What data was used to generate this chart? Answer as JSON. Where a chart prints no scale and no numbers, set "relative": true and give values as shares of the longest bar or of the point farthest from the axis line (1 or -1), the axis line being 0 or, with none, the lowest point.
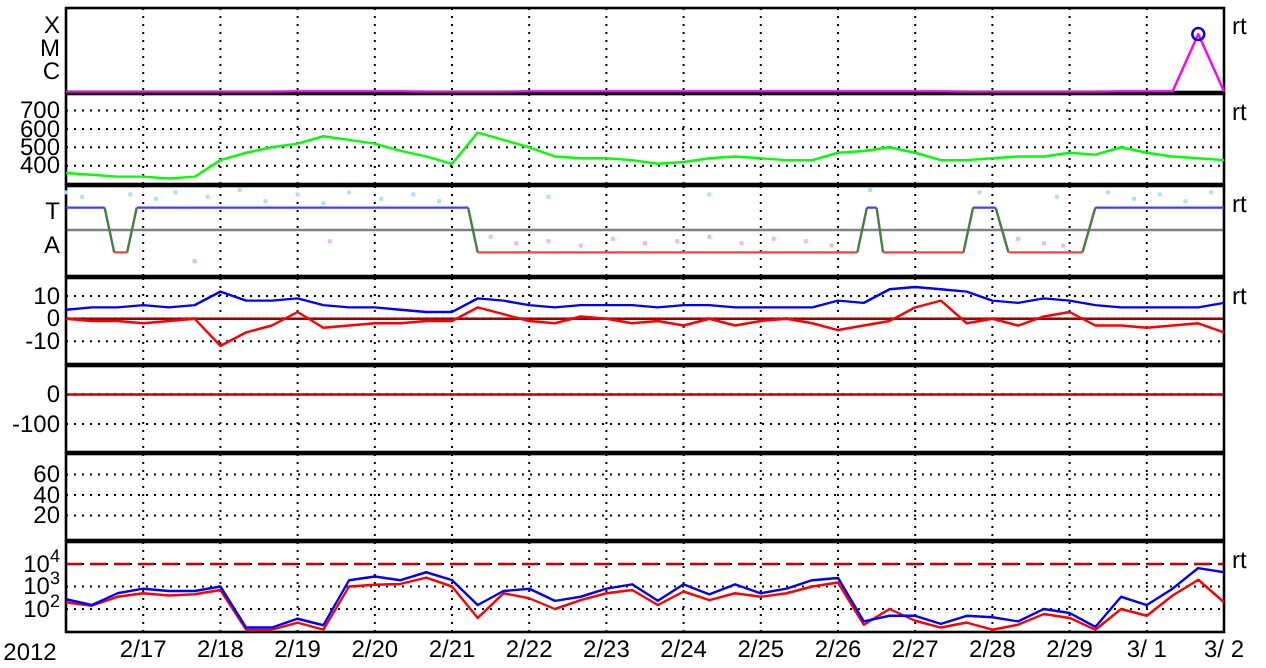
{
  "chart_data": [
    {
      "type": "line",
      "relative": true,
      "grid": "x",
      "tick_labels": "y",
      "annotations": [
        "rt",
        "X",
        "M",
        "C"
      ],
      "xlim": [
        "2012-02-16T00:00",
        "2012-03-02T00:00"
      ],
      "xticks": [
        {
          "value": "2012-02-17T00:00",
          "label": null
        },
        {
          "value": "2012-02-18T00:00",
          "label": null
        },
        {
          "value": "2012-02-19T00:00",
          "label": null
        },
        {
          "value": "2012-02-20T00:00",
          "label": null
        },
        {
          "value": "2012-02-21T00:00",
          "label": null
        },
        {
          "value": "2012-02-22T00:00",
          "label": null
        },
        {
          "value": "2012-02-23T00:00",
          "label": null
        },
        {
          "value": "2012-02-24T00:00",
          "label": null
        },
        {
          "value": "2012-02-25T00:00",
          "label": null
        },
        {
          "value": "2012-02-26T00:00",
          "label": null
        },
        {
          "value": "2012-02-27T00:00",
          "label": null
        },
        {
          "value": "2012-02-28T00:00",
          "label": null
        },
        {
          "value": "2012-02-29T00:00",
          "label": null
        },
        {
          "value": "2012-03-01T00:00",
          "label": null
        },
        {
          "value": "2012-03-02T00:00",
          "label": null
        }
      ],
      "x": [
        "2012-02-16T00:00",
        "2012-02-16T08:00",
        "2012-02-16T16:00",
        "2012-02-17T00:00",
        "2012-02-17T08:00",
        "2012-02-17T16:00",
        "2012-02-18T00:00",
        "2012-02-18T08:00",
        "2012-02-18T16:00",
        "2012-02-19T00:00",
        "2012-02-19T08:00",
        "2012-02-19T16:00",
        "2012-02-20T00:00",
        "2012-02-20T08:00",
        "2012-02-20T16:00",
        "2012-02-21T00:00",
        "2012-02-21T08:00",
        "2012-02-21T16:00",
        "2012-02-22T00:00",
        "2012-02-22T08:00",
        "2012-02-22T16:00",
        "2012-02-23T00:00",
        "2012-02-23T08:00",
        "2012-02-23T16:00",
        "2012-02-24T00:00",
        "2012-02-24T08:00",
        "2012-02-24T16:00",
        "2012-02-25T00:00",
        "2012-02-25T08:00",
        "2012-02-25T16:00",
        "2012-02-26T00:00",
        "2012-02-26T08:00",
        "2012-02-26T16:00",
        "2012-02-27T00:00",
        "2012-02-27T08:00",
        "2012-02-27T16:00",
        "2012-02-28T00:00",
        "2012-02-28T08:00",
        "2012-02-28T16:00",
        "2012-02-29T00:00",
        "2012-02-29T08:00",
        "2012-02-29T16:00",
        "2012-03-01T00:00",
        "2012-03-01T08:00",
        "2012-03-01T16:00",
        "2012-03-02T00:00"
      ],
      "series": [
        {
          "color": "#ff00ff",
          "values": [
            0,
            0,
            0,
            0,
            0,
            0,
            0,
            0,
            0,
            0.01,
            0.01,
            0.01,
            0.01,
            0.01,
            0,
            0,
            0,
            0,
            0.01,
            0.01,
            0.01,
            0.01,
            0.01,
            0.01,
            0.01,
            0.01,
            0.01,
            0.01,
            0.01,
            0.01,
            0.01,
            0.01,
            0.01,
            0.01,
            0.01,
            0,
            0,
            0,
            0,
            0,
            0,
            0.01,
            0.01,
            0.01,
            1,
            0.01
          ]
        },
        {
          "type": "scatter",
          "marker": "circle",
          "color": "#0000ff",
          "x": [
            "2012-03-01T16:00"
          ],
          "values": [
            1
          ]
        }
      ]
    },
    {
      "type": "line",
      "grid": true,
      "tick_labels": "y",
      "annotations": [
        "rt"
      ],
      "xlim": [
        "2012-02-16T00:00",
        "2012-03-02T00:00"
      ],
      "xticks": [
        {
          "value": "2012-02-17T00:00",
          "label": null
        },
        {
          "value": "2012-02-18T00:00",
          "label": null
        },
        {
          "value": "2012-02-19T00:00",
          "label": null
        },
        {
          "value": "2012-02-20T00:00",
          "label": null
        },
        {
          "value": "2012-02-21T00:00",
          "label": null
        },
        {
          "value": "2012-02-22T00:00",
          "label": null
        },
        {
          "value": "2012-02-23T00:00",
          "label": null
        },
        {
          "value": "2012-02-24T00:00",
          "label": null
        },
        {
          "value": "2012-02-25T00:00",
          "label": null
        },
        {
          "value": "2012-02-26T00:00",
          "label": null
        },
        {
          "value": "2012-02-27T00:00",
          "label": null
        },
        {
          "value": "2012-02-28T00:00",
          "label": null
        },
        {
          "value": "2012-02-29T00:00",
          "label": null
        },
        {
          "value": "2012-03-01T00:00",
          "label": null
        },
        {
          "value": "2012-03-02T00:00",
          "label": null
        }
      ],
      "ylim": [
        300,
        790
      ],
      "yticks": [
        400,
        500,
        600,
        700
      ],
      "x": [
        "2012-02-16T00:00",
        "2012-02-16T08:00",
        "2012-02-16T16:00",
        "2012-02-17T00:00",
        "2012-02-17T08:00",
        "2012-02-17T16:00",
        "2012-02-18T00:00",
        "2012-02-18T08:00",
        "2012-02-18T16:00",
        "2012-02-19T00:00",
        "2012-02-19T08:00",
        "2012-02-19T16:00",
        "2012-02-20T00:00",
        "2012-02-20T08:00",
        "2012-02-20T16:00",
        "2012-02-21T00:00",
        "2012-02-21T08:00",
        "2012-02-21T16:00",
        "2012-02-22T00:00",
        "2012-02-22T08:00",
        "2012-02-22T16:00",
        "2012-02-23T00:00",
        "2012-02-23T08:00",
        "2012-02-23T16:00",
        "2012-02-24T00:00",
        "2012-02-24T08:00",
        "2012-02-24T16:00",
        "2012-02-25T00:00",
        "2012-02-25T08:00",
        "2012-02-25T16:00",
        "2012-02-26T00:00",
        "2012-02-26T08:00",
        "2012-02-26T16:00",
        "2012-02-27T00:00",
        "2012-02-27T08:00",
        "2012-02-27T16:00",
        "2012-02-28T00:00",
        "2012-02-28T08:00",
        "2012-02-28T16:00",
        "2012-02-29T00:00",
        "2012-02-29T08:00",
        "2012-02-29T16:00",
        "2012-03-01T00:00",
        "2012-03-01T08:00",
        "2012-03-01T16:00",
        "2012-03-02T00:00"
      ],
      "series": [
        {
          "color": "#00ff00",
          "values": [
            360,
            350,
            340,
            340,
            330,
            340,
            430,
            470,
            500,
            520,
            560,
            540,
            520,
            480,
            450,
            410,
            580,
            540,
            500,
            450,
            440,
            440,
            430,
            410,
            420,
            440,
            450,
            440,
            430,
            430,
            470,
            480,
            500,
            470,
            430,
            430,
            440,
            450,
            450,
            470,
            460,
            500,
            470,
            450,
            440,
            430
          ]
        }
      ]
    },
    {
      "type": "line",
      "relative": true,
      "grid": "x",
      "tick_labels": "y",
      "annotations": [
        "rt",
        "T",
        "A"
      ],
      "xlim": [
        "2012-02-16T00:00",
        "2012-03-02T00:00"
      ],
      "xticks": [
        {
          "value": "2012-02-17T00:00",
          "label": null
        },
        {
          "value": "2012-02-18T00:00",
          "label": null
        },
        {
          "value": "2012-02-19T00:00",
          "label": null
        },
        {
          "value": "2012-02-20T00:00",
          "label": null
        },
        {
          "value": "2012-02-21T00:00",
          "label": null
        },
        {
          "value": "2012-02-22T00:00",
          "label": null
        },
        {
          "value": "2012-02-23T00:00",
          "label": null
        },
        {
          "value": "2012-02-24T00:00",
          "label": null
        },
        {
          "value": "2012-02-25T00:00",
          "label": null
        },
        {
          "value": "2012-02-26T00:00",
          "label": null
        },
        {
          "value": "2012-02-27T00:00",
          "label": null
        },
        {
          "value": "2012-02-28T00:00",
          "label": null
        },
        {
          "value": "2012-02-29T00:00",
          "label": null
        },
        {
          "value": "2012-03-01T00:00",
          "label": null
        },
        {
          "value": "2012-03-02T00:00",
          "label": null
        }
      ],
      "x": [
        "2012-02-16T00:00",
        "2012-02-16T12:00",
        "2012-02-16T15:00",
        "2012-02-16T19:00",
        "2012-02-16T22:00",
        "2012-02-21T05:00",
        "2012-02-21T08:00",
        "2012-02-26T06:00",
        "2012-02-26T09:00",
        "2012-02-26T12:00",
        "2012-02-26T14:00",
        "2012-02-27T15:00",
        "2012-02-27T18:00",
        "2012-02-28T01:00",
        "2012-02-28T05:00",
        "2012-02-29T04:00",
        "2012-02-29T08:00",
        "2012-03-02T00:00"
      ],
      "series": [
        {
          "type": "scatter",
          "marker": "square",
          "color": "#a8e4f4",
          "x": [
            "2012-02-16T00:00",
            "2012-02-16T05:00",
            "2012-02-16T20:00",
            "2012-02-17T04:00",
            "2012-02-17T10:00",
            "2012-02-17T20:00",
            "2012-02-18T06:00",
            "2012-02-18T14:00",
            "2012-02-19T00:00",
            "2012-02-19T08:00",
            "2012-02-19T16:00",
            "2012-02-20T02:00",
            "2012-02-20T12:00",
            "2012-02-20T20:00",
            "2012-02-22T06:00",
            "2012-02-24T08:00",
            "2012-02-26T10:00",
            "2012-02-27T20:00",
            "2012-02-28T20:00",
            "2012-02-29T12:00",
            "2012-02-29T20:00",
            "2012-03-01T04:00",
            "2012-03-01T12:00",
            "2012-03-01T20:00"
          ],
          "values": [
            0.94,
            0.83,
            0.89,
            0.78,
            0.94,
            0.83,
            1,
            0.72,
            0.89,
            0.67,
            0.94,
            0.78,
            0.89,
            0.72,
            0.83,
            0.89,
            1,
            0.94,
            0.83,
            0.94,
            0.78,
            0.89,
            0.72,
            0.94
          ]
        },
        {
          "type": "scatter",
          "marker": "square",
          "color": "#f4b4f0",
          "x": [
            "2012-02-17T16:00",
            "2012-02-19T10:00",
            "2012-02-21T12:00",
            "2012-02-21T20:00",
            "2012-02-22T06:00",
            "2012-02-22T16:00",
            "2012-02-23T02:00",
            "2012-02-23T12:00",
            "2012-02-23T22:00",
            "2012-02-24T08:00",
            "2012-02-24T18:00",
            "2012-02-25T04:00",
            "2012-02-25T14:00",
            "2012-02-25T22:00",
            "2012-02-28T08:00",
            "2012-02-28T16:00",
            "2012-02-28T22:00"
          ],
          "values": [
            -0.78,
            -0.28,
            -0.17,
            -0.33,
            -0.28,
            -0.39,
            -0.22,
            -0.33,
            -0.28,
            -0.17,
            -0.33,
            -0.22,
            -0.28,
            -0.39,
            -0.22,
            -0.33,
            -0.39
          ]
        },
        {
          "color": "#408040",
          "x": [
            "2012-02-16T12:00",
            "2012-02-16T15:00",
            "2012-02-16T17:00",
            "2012-02-16T19:00",
            "2012-02-16T22:00",
            "2012-02-19T00:00",
            "2012-02-21T05:00",
            "2012-02-21T08:00",
            "2012-02-24T00:00",
            "2012-02-26T06:00",
            "2012-02-26T09:00",
            "2012-02-26T10:00",
            "2012-02-26T12:00",
            "2012-02-26T14:00",
            "2012-02-27T00:00",
            "2012-02-27T15:00",
            "2012-02-27T18:00",
            "2012-02-27T20:00",
            "2012-02-28T01:00",
            "2012-02-28T05:00",
            "2012-02-28T12:00",
            "2012-02-29T04:00",
            "2012-02-29T08:00"
          ],
          "values": [
            0.56,
            -0.56,
            null,
            -0.56,
            0.56,
            null,
            0.56,
            -0.56,
            null,
            -0.56,
            0.56,
            null,
            0.56,
            -0.56,
            null,
            -0.56,
            0.56,
            null,
            0.56,
            -0.56,
            null,
            -0.56,
            0.56
          ]
        },
        {
          "color": "#4040ff",
          "values": [
            0.56,
            0.56,
            null,
            null,
            0.56,
            0.56,
            null,
            null,
            0.56,
            0.56,
            null,
            null,
            0.56,
            0.56,
            null,
            null,
            0.56,
            0.56
          ]
        },
        {
          "color": "#ff4040",
          "values": [
            null,
            null,
            -0.56,
            -0.56,
            null,
            null,
            -0.56,
            -0.56,
            null,
            null,
            -0.56,
            -0.56,
            null,
            null,
            -0.56,
            -0.56,
            null,
            null
          ]
        }
      ]
    },
    {
      "type": "line",
      "grid": true,
      "tick_labels": "y",
      "annotations": [
        "rt"
      ],
      "xlim": [
        "2012-02-16T00:00",
        "2012-03-02T00:00"
      ],
      "xticks": [
        {
          "value": "2012-02-17T00:00",
          "label": null
        },
        {
          "value": "2012-02-18T00:00",
          "label": null
        },
        {
          "value": "2012-02-19T00:00",
          "label": null
        },
        {
          "value": "2012-02-20T00:00",
          "label": null
        },
        {
          "value": "2012-02-21T00:00",
          "label": null
        },
        {
          "value": "2012-02-22T00:00",
          "label": null
        },
        {
          "value": "2012-02-23T00:00",
          "label": null
        },
        {
          "value": "2012-02-24T00:00",
          "label": null
        },
        {
          "value": "2012-02-25T00:00",
          "label": null
        },
        {
          "value": "2012-02-26T00:00",
          "label": null
        },
        {
          "value": "2012-02-27T00:00",
          "label": null
        },
        {
          "value": "2012-02-28T00:00",
          "label": null
        },
        {
          "value": "2012-02-29T00:00",
          "label": null
        },
        {
          "value": "2012-03-01T00:00",
          "label": null
        },
        {
          "value": "2012-03-02T00:00",
          "label": null
        }
      ],
      "ylim": [
        -20,
        18
      ],
      "yticks": [
        -10,
        0,
        10
      ],
      "ref_lines": [
        {
          "axis": "y",
          "value": 0,
          "color": "#a00000"
        }
      ],
      "x": [
        "2012-02-16T00:00",
        "2012-02-16T08:00",
        "2012-02-16T16:00",
        "2012-02-17T00:00",
        "2012-02-17T08:00",
        "2012-02-17T16:00",
        "2012-02-18T00:00",
        "2012-02-18T08:00",
        "2012-02-18T16:00",
        "2012-02-19T00:00",
        "2012-02-19T08:00",
        "2012-02-19T16:00",
        "2012-02-20T00:00",
        "2012-02-20T08:00",
        "2012-02-20T16:00",
        "2012-02-21T00:00",
        "2012-02-21T08:00",
        "2012-02-21T16:00",
        "2012-02-22T00:00",
        "2012-02-22T08:00",
        "2012-02-22T16:00",
        "2012-02-23T00:00",
        "2012-02-23T08:00",
        "2012-02-23T16:00",
        "2012-02-24T00:00",
        "2012-02-24T08:00",
        "2012-02-24T16:00",
        "2012-02-25T00:00",
        "2012-02-25T08:00",
        "2012-02-25T16:00",
        "2012-02-26T00:00",
        "2012-02-26T08:00",
        "2012-02-26T16:00",
        "2012-02-27T00:00",
        "2012-02-27T08:00",
        "2012-02-27T16:00",
        "2012-02-28T00:00",
        "2012-02-28T08:00",
        "2012-02-28T16:00",
        "2012-02-29T00:00",
        "2012-02-29T08:00",
        "2012-02-29T16:00",
        "2012-03-01T00:00",
        "2012-03-01T08:00",
        "2012-03-01T16:00",
        "2012-03-02T00:00"
      ],
      "series": [
        {
          "color": "#0000ff",
          "values": [
            4,
            5,
            5,
            6,
            5,
            6,
            12,
            8,
            8,
            9,
            6,
            5,
            5,
            4,
            3,
            3,
            9,
            8,
            6,
            5,
            6,
            6,
            6,
            5,
            6,
            6,
            5,
            5,
            5,
            5,
            8,
            7,
            13,
            14,
            13,
            12,
            8,
            7,
            9,
            8,
            6,
            5,
            5,
            5,
            5,
            7
          ]
        },
        {
          "color": "#ff0000",
          "values": [
            0,
            -1,
            -1,
            -2,
            -1,
            0,
            -12,
            -6,
            -3,
            3,
            -4,
            -3,
            -2,
            -2,
            -1,
            -1,
            5,
            2,
            -1,
            -2,
            1,
            0,
            -2,
            -1,
            -3,
            0,
            -3,
            -1,
            0,
            -2,
            -5,
            -3,
            -1,
            5,
            8,
            -2,
            0,
            -3,
            1,
            3,
            -3,
            -3,
            -4,
            -3,
            -2,
            -6
          ]
        }
      ]
    },
    {
      "type": "line",
      "grid": true,
      "tick_labels": "y",
      "xlim": [
        "2012-02-16T00:00",
        "2012-03-02T00:00"
      ],
      "xticks": [
        {
          "value": "2012-02-17T00:00",
          "label": null
        },
        {
          "value": "2012-02-18T00:00",
          "label": null
        },
        {
          "value": "2012-02-19T00:00",
          "label": null
        },
        {
          "value": "2012-02-20T00:00",
          "label": null
        },
        {
          "value": "2012-02-21T00:00",
          "label": null
        },
        {
          "value": "2012-02-22T00:00",
          "label": null
        },
        {
          "value": "2012-02-23T00:00",
          "label": null
        },
        {
          "value": "2012-02-24T00:00",
          "label": null
        },
        {
          "value": "2012-02-25T00:00",
          "label": null
        },
        {
          "value": "2012-02-26T00:00",
          "label": null
        },
        {
          "value": "2012-02-27T00:00",
          "label": null
        },
        {
          "value": "2012-02-28T00:00",
          "label": null
        },
        {
          "value": "2012-02-29T00:00",
          "label": null
        },
        {
          "value": "2012-03-01T00:00",
          "label": null
        },
        {
          "value": "2012-03-02T00:00",
          "label": null
        }
      ],
      "ylim": [
        -195,
        97
      ],
      "yticks": [
        -100,
        0
      ],
      "ref_lines": [
        {
          "axis": "y",
          "value": 0,
          "color": "#cc0000"
        }
      ]
    },
    {
      "type": "line",
      "grid": true,
      "tick_labels": "y",
      "xlim": [
        "2012-02-16T00:00",
        "2012-03-02T00:00"
      ],
      "xticks": [
        {
          "value": "2012-02-17T00:00",
          "label": null
        },
        {
          "value": "2012-02-18T00:00",
          "label": null
        },
        {
          "value": "2012-02-19T00:00",
          "label": null
        },
        {
          "value": "2012-02-20T00:00",
          "label": null
        },
        {
          "value": "2012-02-21T00:00",
          "label": null
        },
        {
          "value": "2012-02-22T00:00",
          "label": null
        },
        {
          "value": "2012-02-23T00:00",
          "label": null
        },
        {
          "value": "2012-02-24T00:00",
          "label": null
        },
        {
          "value": "2012-02-25T00:00",
          "label": null
        },
        {
          "value": "2012-02-26T00:00",
          "label": null
        },
        {
          "value": "2012-02-27T00:00",
          "label": null
        },
        {
          "value": "2012-02-28T00:00",
          "label": null
        },
        {
          "value": "2012-02-29T00:00",
          "label": null
        },
        {
          "value": "2012-03-01T00:00",
          "label": null
        },
        {
          "value": "2012-03-02T00:00",
          "label": null
        }
      ],
      "ylim": [
        -4,
        80
      ],
      "yticks": [
        20,
        40,
        60
      ]
    },
    {
      "type": "line",
      "log": "y",
      "grid": true,
      "xlabel": "2012",
      "annotations": [
        "rt"
      ],
      "xlim": [
        "2012-02-16T00:00",
        "2012-03-02T00:00"
      ],
      "xticks": [
        {
          "value": "2012-02-17T00:00",
          "label": "2/17"
        },
        {
          "value": "2012-02-18T00:00",
          "label": "2/18"
        },
        {
          "value": "2012-02-19T00:00",
          "label": "2/19"
        },
        {
          "value": "2012-02-20T00:00",
          "label": "2/20"
        },
        {
          "value": "2012-02-21T00:00",
          "label": "2/21"
        },
        {
          "value": "2012-02-22T00:00",
          "label": "2/22"
        },
        {
          "value": "2012-02-23T00:00",
          "label": "2/23"
        },
        {
          "value": "2012-02-24T00:00",
          "label": "2/24"
        },
        {
          "value": "2012-02-25T00:00",
          "label": "2/25"
        },
        {
          "value": "2012-02-26T00:00",
          "label": "2/26"
        },
        {
          "value": "2012-02-27T00:00",
          "label": "2/27"
        },
        {
          "value": "2012-02-28T00:00",
          "label": "2/28"
        },
        {
          "value": "2012-02-29T00:00",
          "label": "2/29"
        },
        {
          "value": "2012-03-01T00:00",
          "label": "3/ 1"
        },
        {
          "value": "2012-03-02T00:00",
          "label": "3/ 2"
        }
      ],
      "ylim": [
        9.5,
        95000.0
      ],
      "yticks": [
        {
          "value": 100,
          "label": "10$^{2}$"
        },
        {
          "value": 1000,
          "label": "10$^{3}$"
        },
        {
          "value": 10000,
          "label": "10$^{4}$"
        }
      ],
      "ref_lines": [
        {
          "axis": "y",
          "value": 10000,
          "color": "#cc0000",
          "line_style": "dashed"
        }
      ],
      "x": [
        "2012-02-16T00:00",
        "2012-02-16T08:00",
        "2012-02-16T16:00",
        "2012-02-17T00:00",
        "2012-02-17T08:00",
        "2012-02-17T16:00",
        "2012-02-18T00:00",
        "2012-02-18T08:00",
        "2012-02-18T16:00",
        "2012-02-19T00:00",
        "2012-02-19T08:00",
        "2012-02-19T16:00",
        "2012-02-20T00:00",
        "2012-02-20T08:00",
        "2012-02-20T16:00",
        "2012-02-21T00:00",
        "2012-02-21T08:00",
        "2012-02-21T16:00",
        "2012-02-22T00:00",
        "2012-02-22T08:00",
        "2012-02-22T16:00",
        "2012-02-23T00:00",
        "2012-02-23T08:00",
        "2012-02-23T16:00",
        "2012-02-24T00:00",
        "2012-02-24T08:00",
        "2012-02-24T16:00",
        "2012-02-25T00:00",
        "2012-02-25T08:00",
        "2012-02-25T16:00",
        "2012-02-26T00:00",
        "2012-02-26T08:00",
        "2012-02-26T16:00",
        "2012-02-27T00:00",
        "2012-02-27T08:00",
        "2012-02-27T16:00",
        "2012-02-28T00:00",
        "2012-02-28T08:00",
        "2012-02-28T16:00",
        "2012-02-29T00:00",
        "2012-02-29T08:00",
        "2012-02-29T16:00",
        "2012-03-01T00:00",
        "2012-03-01T08:00",
        "2012-03-01T16:00",
        "2012-03-02T00:00"
      ],
      "series": [
        {
          "color": "#ff0000",
          "values": [
            200,
            140,
            350,
            500,
            400,
            450,
            700,
            12,
            12,
            25,
            12,
            1000,
            1200,
            1300,
            2500,
            1000,
            40,
            500,
            300,
            100,
            250,
            500,
            700,
            150,
            600,
            250,
            500,
            350,
            500,
            1000,
            1500,
            20,
            100,
            30,
            15,
            25,
            12,
            20,
            60,
            40,
            12,
            100,
            50,
            400,
            2000,
            200
          ]
        },
        {
          "color": "#0000ff",
          "values": [
            270,
            150,
            500,
            800,
            630,
            630,
            1000,
            15,
            15,
            37,
            19,
            1900,
            2800,
            1900,
            4300,
            1900,
            150,
            630,
            800,
            230,
            350,
            800,
            1250,
            230,
            1250,
            450,
            1250,
            500,
            800,
            1900,
            2400,
            28,
            50,
            50,
            22,
            50,
            43,
            28,
            100,
            66,
            16,
            350,
            150,
            800,
            6600,
            4300
          ]
        }
      ]
    }
  ]
}
